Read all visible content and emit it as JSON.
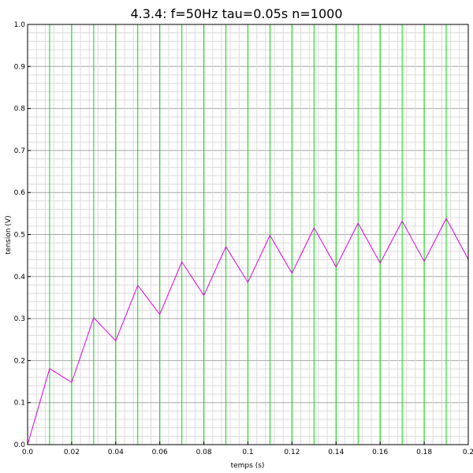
{
  "chart_data": {
    "type": "line",
    "title": "4.3.4: f=50Hz tau=0.05s n=1000",
    "xlabel": "temps (s)",
    "ylabel": "tension (V)",
    "xlim": [
      0,
      0.2
    ],
    "ylim": [
      0,
      1.0
    ],
    "grid": true,
    "x_ticks": [
      "0.0",
      "0.02",
      "0.04",
      "0.06",
      "0.08",
      "0.1",
      "0.12",
      "0.14",
      "0.16",
      "0.18",
      "0.2"
    ],
    "y_ticks": [
      "0.0",
      "0.1",
      "0.2",
      "0.3",
      "0.4",
      "0.5",
      "0.6",
      "0.7",
      "0.8",
      "0.9",
      "1.0"
    ],
    "series": [
      {
        "color": "#00dd00",
        "x": [
          0,
          0,
          0.01,
          0.01,
          0.02,
          0.02,
          0.03,
          0.03,
          0.04,
          0.04,
          0.05,
          0.05,
          0.06,
          0.06,
          0.07,
          0.07,
          0.08,
          0.08,
          0.09,
          0.09,
          0.1,
          0.1,
          0.11,
          0.11,
          0.12,
          0.12,
          0.13,
          0.13,
          0.14,
          0.14,
          0.15,
          0.15,
          0.16,
          0.16,
          0.17,
          0.17,
          0.18,
          0.18,
          0.19,
          0.19,
          0.2
        ],
        "y": [
          0,
          1,
          1,
          0,
          0,
          1,
          1,
          0,
          0,
          1,
          1,
          0,
          0,
          1,
          1,
          0,
          0,
          1,
          1,
          0,
          0,
          1,
          1,
          0,
          0,
          1,
          1,
          0,
          0,
          1,
          1,
          0,
          0,
          1,
          1,
          0,
          0,
          1,
          1,
          0,
          0
        ]
      },
      {
        "color": "#dd00dd",
        "x": [
          0,
          0.01,
          0.02,
          0.03,
          0.04,
          0.05,
          0.06,
          0.07,
          0.08,
          0.09,
          0.1,
          0.11,
          0.12,
          0.13,
          0.14,
          0.15,
          0.16,
          0.17,
          0.18,
          0.19,
          0.2
        ],
        "y": [
          0,
          0.181,
          0.148,
          0.302,
          0.247,
          0.379,
          0.31,
          0.435,
          0.355,
          0.471,
          0.386,
          0.498,
          0.408,
          0.516,
          0.423,
          0.527,
          0.432,
          0.532,
          0.436,
          0.538,
          0.441
        ]
      }
    ]
  }
}
